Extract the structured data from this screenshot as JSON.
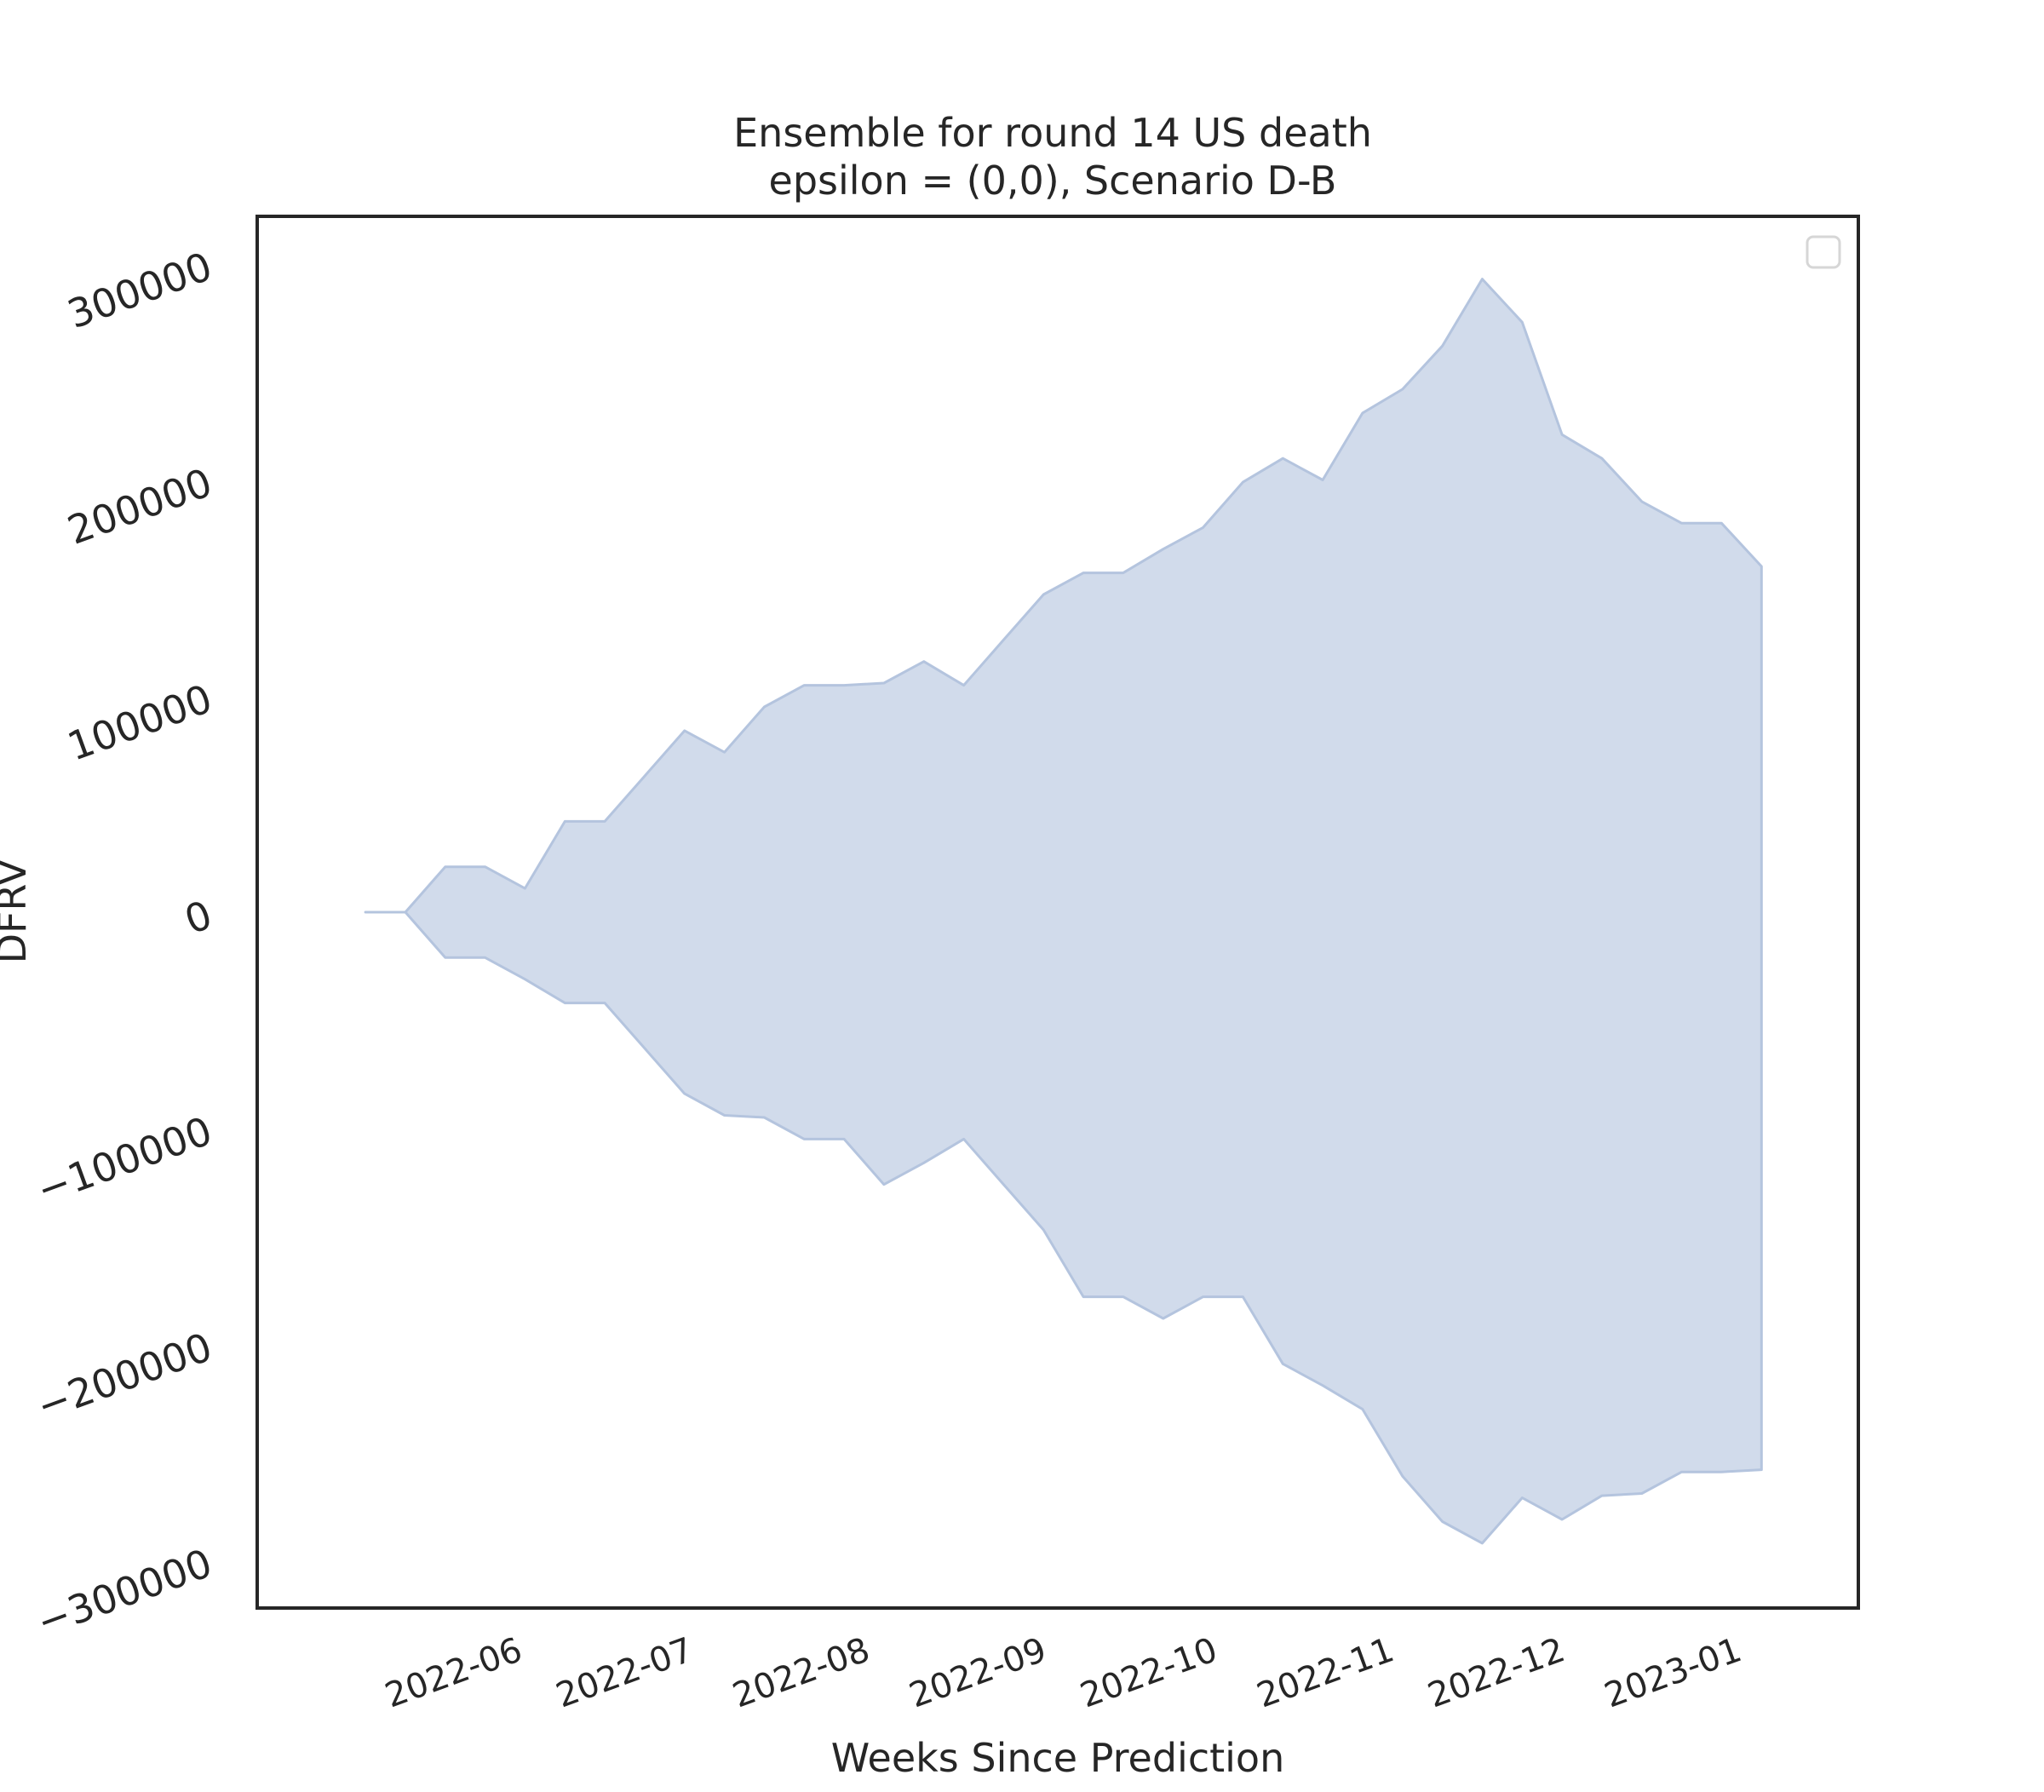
{
  "chart_data": {
    "type": "area",
    "title": "Ensemble for round 14 US death",
    "subtitle": "epsilon = (0,0), Scenario D-B",
    "xlabel": "Weeks Since Prediction",
    "ylabel": "DFRV",
    "x_tick_labels": [
      "2022-06",
      "2022-07",
      "2022-08",
      "2022-09",
      "2022-10",
      "2022-11",
      "2022-12",
      "2023-01"
    ],
    "x_tick_dates": [
      "2022-06-01",
      "2022-07-01",
      "2022-08-01",
      "2022-09-01",
      "2022-10-01",
      "2022-11-01",
      "2022-12-01",
      "2023-01-01"
    ],
    "y_ticks": [
      -300000,
      -200000,
      -100000,
      0,
      100000,
      200000,
      300000
    ],
    "y_tick_labels": [
      "−300000",
      "−200000",
      "−100000",
      "0",
      "100000",
      "200000",
      "300000"
    ],
    "xlim": [
      "2022-04-19",
      "2023-01-25"
    ],
    "ylim": [
      -322000,
      322000
    ],
    "grid": false,
    "legend": "top-right",
    "fill_color": "#d1dbeb",
    "edge_color": "#b4c4de",
    "x": [
      "2022-05-08",
      "2022-05-15",
      "2022-05-22",
      "2022-05-29",
      "2022-06-05",
      "2022-06-12",
      "2022-06-19",
      "2022-06-26",
      "2022-07-03",
      "2022-07-10",
      "2022-07-17",
      "2022-07-24",
      "2022-07-31",
      "2022-08-07",
      "2022-08-14",
      "2022-08-21",
      "2022-08-28",
      "2022-09-04",
      "2022-09-11",
      "2022-09-18",
      "2022-09-25",
      "2022-10-02",
      "2022-10-09",
      "2022-10-16",
      "2022-10-23",
      "2022-10-30",
      "2022-11-06",
      "2022-11-13",
      "2022-11-20",
      "2022-11-27",
      "2022-12-04",
      "2022-12-11",
      "2022-12-18",
      "2022-12-25",
      "2023-01-01",
      "2023-01-08"
    ],
    "upper": [
      0,
      0,
      21000,
      21000,
      11000,
      42000,
      42000,
      63000,
      84000,
      74000,
      95000,
      105000,
      105000,
      106000,
      116000,
      105000,
      126000,
      147000,
      157000,
      157000,
      168000,
      178000,
      199000,
      210000,
      200000,
      231000,
      242000,
      262000,
      293000,
      273000,
      221000,
      210000,
      190000,
      180000,
      180000,
      160000
    ],
    "lower": [
      0,
      0,
      -21000,
      -21000,
      -31000,
      -42000,
      -42000,
      -63000,
      -84000,
      -94000,
      -95000,
      -105000,
      -105000,
      -126000,
      -116000,
      -105000,
      -126000,
      -147000,
      -178000,
      -178000,
      -188000,
      -178000,
      -178000,
      -209000,
      -219000,
      -230000,
      -261000,
      -282000,
      -292000,
      -271000,
      -281000,
      -270000,
      -269000,
      -259000,
      -259000,
      -258000
    ]
  }
}
